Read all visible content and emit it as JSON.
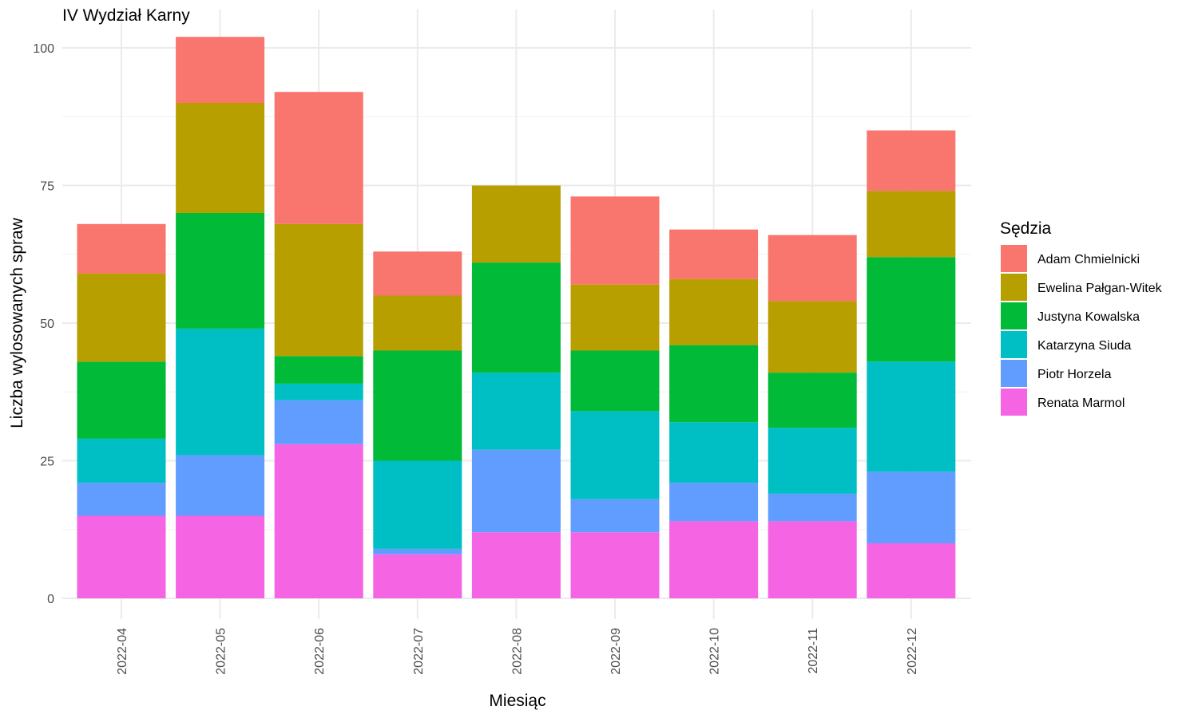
{
  "chart_data": {
    "type": "bar",
    "stacked": true,
    "title": "IV Wydział Karny",
    "xlabel": "Miesiąc",
    "ylabel": "Liczba wylosowanych spraw",
    "ylim": [
      0,
      105
    ],
    "y_ticks": [
      0,
      25,
      50,
      75,
      100
    ],
    "grid": true,
    "legend_title": "Sędzia",
    "legend_position": "right",
    "categories": [
      "2022-04",
      "2022-05",
      "2022-06",
      "2022-07",
      "2022-08",
      "2022-09",
      "2022-10",
      "2022-11",
      "2022-12"
    ],
    "series": [
      {
        "name": "Adam Chmielnicki",
        "color": "#F8766D",
        "values": [
          9,
          12,
          24,
          8,
          0,
          16,
          9,
          12,
          11
        ]
      },
      {
        "name": "Ewelina Pałgan-Witek",
        "color": "#B79F00",
        "values": [
          16,
          20,
          24,
          10,
          14,
          12,
          12,
          13,
          12
        ]
      },
      {
        "name": "Justyna Kowalska",
        "color": "#00BA38",
        "values": [
          14,
          21,
          5,
          20,
          20,
          11,
          14,
          10,
          19
        ]
      },
      {
        "name": "Katarzyna Siuda",
        "color": "#00BFC4",
        "values": [
          8,
          23,
          3,
          16,
          14,
          16,
          11,
          12,
          20
        ]
      },
      {
        "name": "Piotr Horzela",
        "color": "#619CFF",
        "values": [
          6,
          11,
          8,
          1,
          15,
          6,
          7,
          5,
          13
        ]
      },
      {
        "name": "Renata Marmol",
        "color": "#F564E3",
        "values": [
          15,
          15,
          28,
          8,
          12,
          12,
          14,
          14,
          10
        ]
      }
    ]
  }
}
